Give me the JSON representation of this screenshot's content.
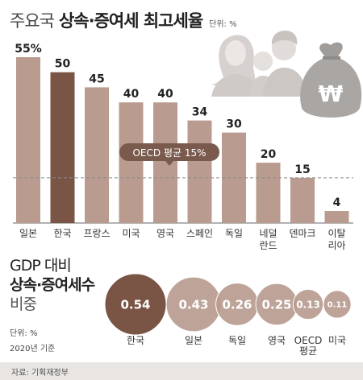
{
  "title": {
    "prefix": "주요국",
    "main": "상속·증여세 최고세율",
    "unit": "단위: %"
  },
  "chart_data": [
    {
      "type": "bar",
      "title": "주요국 상속·증여세 최고세율",
      "unit": "단위: %",
      "categories": [
        "일본",
        "한국",
        "프랑스",
        "미국",
        "영국",
        "스페인",
        "독일",
        "네덜\n란드",
        "덴마크",
        "이탈\n리아"
      ],
      "values": [
        55,
        50,
        45,
        40,
        40,
        34,
        30,
        20,
        15,
        4
      ],
      "value_labels": [
        "55%",
        "50",
        "45",
        "40",
        "40",
        "34",
        "30",
        "20",
        "15",
        "4"
      ],
      "highlight_index": 1,
      "reference_line": {
        "label": "OECD 평균 15%",
        "value": 15
      },
      "colors": {
        "bar": "#b99c8f",
        "highlight": "#7a5445",
        "reference": "#7a5a4c"
      }
    },
    {
      "type": "bubble",
      "title": "GDP 대비 상속·증여세수 비중",
      "unit": "단위: %",
      "note": "2020년 기준",
      "categories": [
        "한국",
        "일본",
        "독일",
        "영국",
        "OECD\n평균",
        "미국"
      ],
      "values": [
        0.54,
        0.43,
        0.26,
        0.25,
        0.13,
        0.11
      ],
      "value_labels": [
        "0.54",
        "0.43",
        "0.26",
        "0.25",
        "0.13",
        "0.11"
      ],
      "colors": {
        "highlight": "#7a5445",
        "bubble": "#b99c8f"
      }
    }
  ],
  "bubble_title": {
    "line1": "GDP 대비",
    "line2": "상속·증여세수",
    "line3": "비중"
  },
  "bubble_notes": {
    "unit": "단위: %",
    "year": "2020년 기준"
  },
  "source": "자료: 기획재정부",
  "illustration": {
    "icon": "family-and-money-bag-icon",
    "bag_symbol": "₩"
  }
}
